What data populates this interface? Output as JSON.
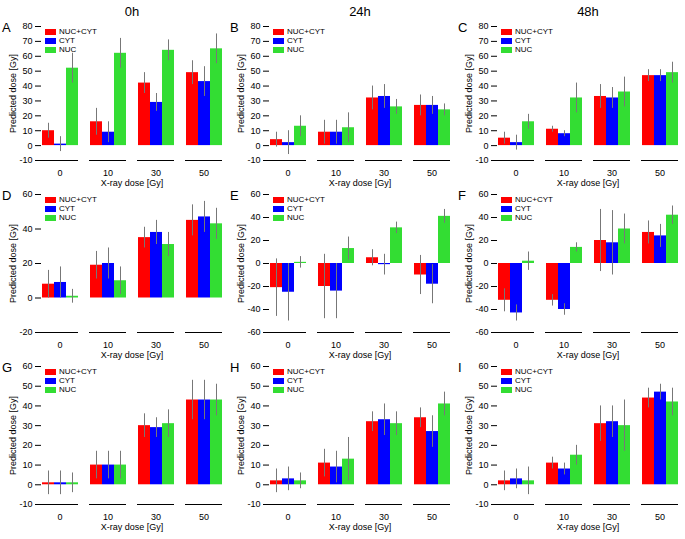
{
  "chart_data": [
    {
      "type": "bar",
      "title": "A",
      "subtitle": "0h",
      "xlabel": "X-ray dose [Gy]",
      "ylabel": "Predicted dose [Gy]",
      "categories": [
        0,
        10,
        30,
        50
      ],
      "ylim": [
        -10,
        80
      ],
      "yticks": [
        -10,
        0,
        10,
        20,
        30,
        40,
        50,
        60,
        70,
        80
      ],
      "legend": "upper left",
      "series": [
        {
          "name": "NUC+CYT",
          "color": "#ff0000",
          "values": [
            10,
            16,
            42,
            49
          ],
          "errors": [
            5,
            9,
            7,
            8
          ]
        },
        {
          "name": "CYT",
          "color": "#0000ff",
          "values": [
            1,
            9,
            29,
            43
          ],
          "errors": [
            5,
            7,
            6,
            10
          ]
        },
        {
          "name": "NUC",
          "color": "#33dd33",
          "values": [
            52,
            62,
            64,
            65
          ],
          "errors": [
            10,
            10,
            7,
            10
          ]
        }
      ]
    },
    {
      "type": "bar",
      "title": "B",
      "subtitle": "24h",
      "xlabel": "X-ray dose [Gy]",
      "ylabel": "Predicted dose [Gy]",
      "categories": [
        0,
        10,
        30,
        50
      ],
      "ylim": [
        -10,
        80
      ],
      "yticks": [
        -10,
        0,
        10,
        20,
        30,
        40,
        50,
        60,
        70,
        80
      ],
      "legend": "upper left",
      "series": [
        {
          "name": "NUC+CYT",
          "color": "#ff0000",
          "values": [
            4,
            9,
            32,
            27
          ],
          "errors": [
            5,
            8,
            8,
            7
          ]
        },
        {
          "name": "CYT",
          "color": "#0000ff",
          "values": [
            2,
            9,
            33,
            27
          ],
          "errors": [
            8,
            8,
            8,
            6
          ]
        },
        {
          "name": "NUC",
          "color": "#33dd33",
          "values": [
            13,
            12,
            26,
            24
          ],
          "errors": [
            7,
            10,
            5,
            4
          ]
        }
      ]
    },
    {
      "type": "bar",
      "title": "C",
      "subtitle": "48h",
      "xlabel": "X-ray dose [Gy]",
      "ylabel": "Predicted dose [Gy]",
      "categories": [
        0,
        10,
        30,
        50
      ],
      "ylim": [
        -10,
        80
      ],
      "yticks": [
        -10,
        0,
        10,
        20,
        30,
        40,
        50,
        60,
        70,
        80
      ],
      "legend": "upper left",
      "series": [
        {
          "name": "NUC+CYT",
          "color": "#ff0000",
          "values": [
            5,
            11,
            33,
            47
          ],
          "errors": [
            4,
            2,
            8,
            4
          ]
        },
        {
          "name": "CYT",
          "color": "#0000ff",
          "values": [
            2,
            8,
            32,
            47
          ],
          "errors": [
            5,
            2,
            7,
            4
          ]
        },
        {
          "name": "NUC",
          "color": "#33dd33",
          "values": [
            16,
            32,
            36,
            49
          ],
          "errors": [
            5,
            10,
            10,
            7
          ]
        }
      ]
    },
    {
      "type": "bar",
      "title": "D",
      "xlabel": "X-ray dose [Gy]",
      "ylabel": "Predicted dose [Gy]",
      "categories": [
        0,
        10,
        30,
        50
      ],
      "ylim": [
        -20,
        60
      ],
      "yticks": [
        -20,
        0,
        20,
        40,
        60
      ],
      "legend": "upper left",
      "series": [
        {
          "name": "NUC+CYT",
          "color": "#ff0000",
          "values": [
            8,
            19,
            35,
            45
          ],
          "errors": [
            8,
            8,
            6,
            9
          ]
        },
        {
          "name": "CYT",
          "color": "#0000ff",
          "values": [
            9,
            20,
            38,
            47
          ],
          "errors": [
            9,
            9,
            7,
            9
          ]
        },
        {
          "name": "NUC",
          "color": "#33dd33",
          "values": [
            1,
            10,
            31,
            43
          ],
          "errors": [
            4,
            8,
            7,
            9
          ]
        }
      ]
    },
    {
      "type": "bar",
      "title": "E",
      "xlabel": "X-ray dose [Gy]",
      "ylabel": "Predicted dose [Gy]",
      "categories": [
        0,
        10,
        30,
        50
      ],
      "ylim": [
        -60,
        60
      ],
      "yticks": [
        -60,
        -40,
        -20,
        0,
        20,
        40,
        60
      ],
      "legend": "upper left",
      "series": [
        {
          "name": "NUC+CYT",
          "color": "#ff0000",
          "values": [
            -21,
            -20,
            5,
            -10
          ],
          "errors": [
            25,
            28,
            7,
            17
          ]
        },
        {
          "name": "CYT",
          "color": "#0000ff",
          "values": [
            -25,
            -24,
            -1,
            -18
          ],
          "errors": [
            25,
            24,
            9,
            17
          ]
        },
        {
          "name": "NUC",
          "color": "#33dd33",
          "values": [
            1,
            13,
            31,
            41
          ],
          "errors": [
            5,
            10,
            5,
            6
          ]
        }
      ]
    },
    {
      "type": "bar",
      "title": "F",
      "xlabel": "X-ray dose [Gy]",
      "ylabel": "Predicted dose [Gy]",
      "categories": [
        0,
        10,
        30,
        50
      ],
      "ylim": [
        -60,
        60
      ],
      "yticks": [
        -60,
        -40,
        -20,
        0,
        20,
        40,
        60
      ],
      "legend": "upper left",
      "series": [
        {
          "name": "NUC+CYT",
          "color": "#ff0000",
          "values": [
            -32,
            -32,
            20,
            27
          ],
          "errors": [
            10,
            5,
            27,
            10
          ]
        },
        {
          "name": "CYT",
          "color": "#0000ff",
          "values": [
            -43,
            -40,
            18,
            24
          ],
          "errors": [
            7,
            5,
            28,
            10
          ]
        },
        {
          "name": "NUC",
          "color": "#33dd33",
          "values": [
            2,
            14,
            30,
            42
          ],
          "errors": [
            8,
            4,
            13,
            8
          ]
        }
      ]
    },
    {
      "type": "bar",
      "title": "G",
      "xlabel": "X-ray dose [Gy]",
      "ylabel": "Predicted dose [Gy]",
      "categories": [
        0,
        10,
        30,
        50
      ],
      "ylim": [
        -10,
        60
      ],
      "yticks": [
        -10,
        0,
        10,
        20,
        30,
        40,
        50,
        60
      ],
      "legend": "upper left",
      "series": [
        {
          "name": "NUC+CYT",
          "color": "#ff0000",
          "values": [
            1,
            10,
            30,
            43
          ],
          "errors": [
            6,
            7,
            6,
            10
          ]
        },
        {
          "name": "CYT",
          "color": "#0000ff",
          "values": [
            1,
            10,
            29,
            43
          ],
          "errors": [
            6,
            7,
            5,
            10
          ]
        },
        {
          "name": "NUC",
          "color": "#33dd33",
          "values": [
            1,
            10,
            31,
            43
          ],
          "errors": [
            5,
            7,
            7,
            8
          ]
        }
      ]
    },
    {
      "type": "bar",
      "title": "H",
      "xlabel": "X-ray dose [Gy]",
      "ylabel": "Predicted dose [Gy]",
      "categories": [
        0,
        10,
        30,
        50
      ],
      "ylim": [
        -10,
        60
      ],
      "yticks": [
        -10,
        0,
        10,
        20,
        30,
        40,
        50,
        60
      ],
      "legend": "upper left",
      "series": [
        {
          "name": "NUC+CYT",
          "color": "#ff0000",
          "values": [
            2,
            11,
            32,
            34
          ],
          "errors": [
            6,
            7,
            5,
            5
          ]
        },
        {
          "name": "CYT",
          "color": "#0000ff",
          "values": [
            3,
            9,
            33,
            27
          ],
          "errors": [
            6,
            8,
            8,
            8
          ]
        },
        {
          "name": "NUC",
          "color": "#33dd33",
          "values": [
            2,
            13,
            31,
            41
          ],
          "errors": [
            4,
            11,
            6,
            6
          ]
        }
      ]
    },
    {
      "type": "bar",
      "title": "I",
      "xlabel": "X-ray dose [Gy]",
      "ylabel": "Predicted dose [Gy]",
      "categories": [
        0,
        10,
        30,
        50
      ],
      "ylim": [
        -10,
        60
      ],
      "yticks": [
        -10,
        0,
        10,
        20,
        30,
        40,
        50,
        60
      ],
      "legend": "upper left",
      "series": [
        {
          "name": "NUC+CYT",
          "color": "#ff0000",
          "values": [
            2,
            11,
            31,
            44
          ],
          "errors": [
            5,
            3,
            9,
            5
          ]
        },
        {
          "name": "CYT",
          "color": "#0000ff",
          "values": [
            3,
            8,
            32,
            47
          ],
          "errors": [
            5,
            3,
            8,
            4
          ]
        },
        {
          "name": "NUC",
          "color": "#33dd33",
          "values": [
            2,
            15,
            30,
            42
          ],
          "errors": [
            7,
            5,
            13,
            7
          ]
        }
      ]
    }
  ]
}
